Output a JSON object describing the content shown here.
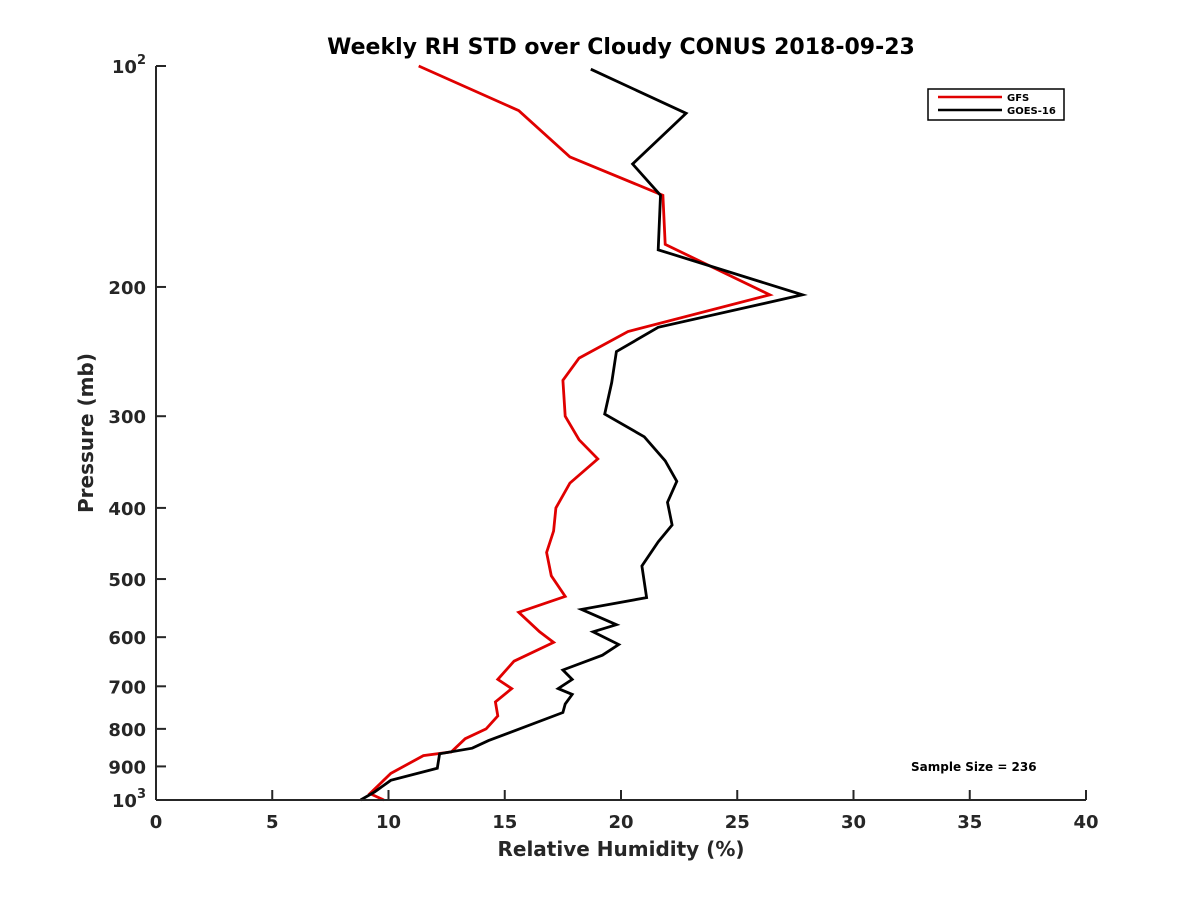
{
  "chart_data": {
    "type": "line",
    "title": "Weekly RH STD over Cloudy CONUS 2018-09-23",
    "xlabel": "Relative Humidity (%)",
    "ylabel": "Pressure (mb)",
    "xlim": [
      0,
      40
    ],
    "ylim": [
      100,
      1000
    ],
    "y_scale": "log",
    "y_reversed": true,
    "grid": false,
    "legend_position": "top-right",
    "x_ticks": [
      "0",
      "5",
      "10",
      "15",
      "20",
      "25",
      "30",
      "35",
      "40"
    ],
    "y_ticks": [
      {
        "value": 100,
        "base": "10",
        "sup": "2"
      },
      {
        "value": 200,
        "base": "200",
        "sup": ""
      },
      {
        "value": 300,
        "base": "300",
        "sup": ""
      },
      {
        "value": 400,
        "base": "400",
        "sup": ""
      },
      {
        "value": 500,
        "base": "500",
        "sup": ""
      },
      {
        "value": 600,
        "base": "600",
        "sup": ""
      },
      {
        "value": 700,
        "base": "700",
        "sup": ""
      },
      {
        "value": 800,
        "base": "800",
        "sup": ""
      },
      {
        "value": 900,
        "base": "900",
        "sup": ""
      },
      {
        "value": 1000,
        "base": "10",
        "sup": "3"
      }
    ],
    "annotation": "Sample Size = 236",
    "series": [
      {
        "name": "GFS",
        "color": "#e00000",
        "points": [
          [
            11.3,
            100
          ],
          [
            15.6,
            115
          ],
          [
            17.8,
            133
          ],
          [
            21.8,
            150
          ],
          [
            21.9,
            175
          ],
          [
            26.4,
            205
          ],
          [
            20.3,
            230
          ],
          [
            18.2,
            250
          ],
          [
            17.5,
            268
          ],
          [
            17.6,
            300
          ],
          [
            18.2,
            323
          ],
          [
            19.0,
            343
          ],
          [
            17.8,
            370
          ],
          [
            17.2,
            400
          ],
          [
            17.1,
            430
          ],
          [
            16.8,
            460
          ],
          [
            17.0,
            495
          ],
          [
            17.6,
            528
          ],
          [
            15.6,
            555
          ],
          [
            16.5,
            590
          ],
          [
            17.1,
            610
          ],
          [
            15.4,
            647
          ],
          [
            14.7,
            685
          ],
          [
            15.3,
            705
          ],
          [
            14.6,
            735
          ],
          [
            14.7,
            768
          ],
          [
            14.2,
            800
          ],
          [
            13.3,
            825
          ],
          [
            12.7,
            860
          ],
          [
            11.5,
            870
          ],
          [
            10.1,
            920
          ],
          [
            9.2,
            980
          ],
          [
            9.8,
            1000
          ]
        ]
      },
      {
        "name": "GOES-16",
        "color": "#000000",
        "points": [
          [
            18.7,
            101
          ],
          [
            22.8,
            116
          ],
          [
            20.5,
            136
          ],
          [
            21.7,
            150
          ],
          [
            21.6,
            178
          ],
          [
            27.8,
            205
          ],
          [
            21.6,
            227
          ],
          [
            19.8,
            245
          ],
          [
            19.6,
            270
          ],
          [
            19.3,
            298
          ],
          [
            21.0,
            320
          ],
          [
            21.9,
            345
          ],
          [
            22.4,
            368
          ],
          [
            22.0,
            393
          ],
          [
            22.2,
            422
          ],
          [
            21.6,
            445
          ],
          [
            20.9,
            480
          ],
          [
            21.1,
            530
          ],
          [
            18.3,
            550
          ],
          [
            19.8,
            577
          ],
          [
            18.8,
            590
          ],
          [
            19.9,
            614
          ],
          [
            19.2,
            635
          ],
          [
            17.5,
            665
          ],
          [
            17.9,
            685
          ],
          [
            17.3,
            705
          ],
          [
            17.9,
            718
          ],
          [
            17.6,
            740
          ],
          [
            17.5,
            760
          ],
          [
            14.3,
            830
          ],
          [
            13.6,
            850
          ],
          [
            12.2,
            865
          ],
          [
            12.1,
            905
          ],
          [
            10.1,
            940
          ],
          [
            9.4,
            975
          ],
          [
            8.8,
            1000
          ]
        ]
      }
    ]
  }
}
